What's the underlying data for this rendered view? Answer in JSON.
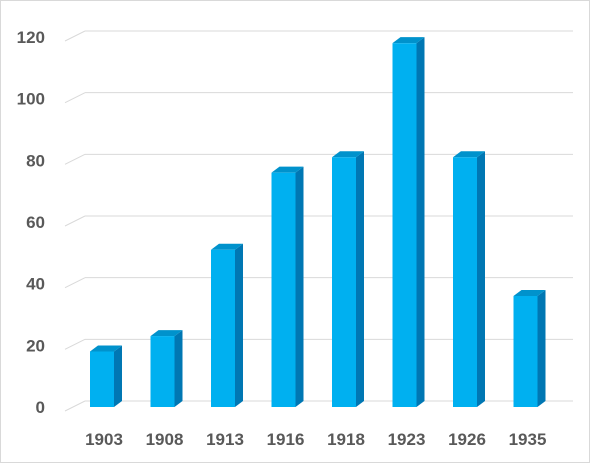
{
  "chart_data": {
    "type": "bar",
    "style": "3d-column",
    "title": "",
    "xlabel": "",
    "ylabel": "",
    "categories": [
      "1903",
      "1908",
      "1913",
      "1916",
      "1918",
      "1923",
      "1926",
      "1935"
    ],
    "values": [
      18,
      23,
      51,
      76,
      81,
      118,
      81,
      36
    ],
    "ylim": [
      0,
      120
    ],
    "yticks": [
      0,
      20,
      40,
      60,
      80,
      100,
      120
    ],
    "ytick_labels": [
      "0",
      "20",
      "40",
      "60",
      "80",
      "100",
      "120"
    ],
    "grid": true,
    "legend": "none",
    "colors": {
      "bar_front": "#00b0f0",
      "bar_side": "#0077b3",
      "bar_top": "#0092cc",
      "grid": "#d9d9d9",
      "tick_text": "#595959"
    }
  }
}
